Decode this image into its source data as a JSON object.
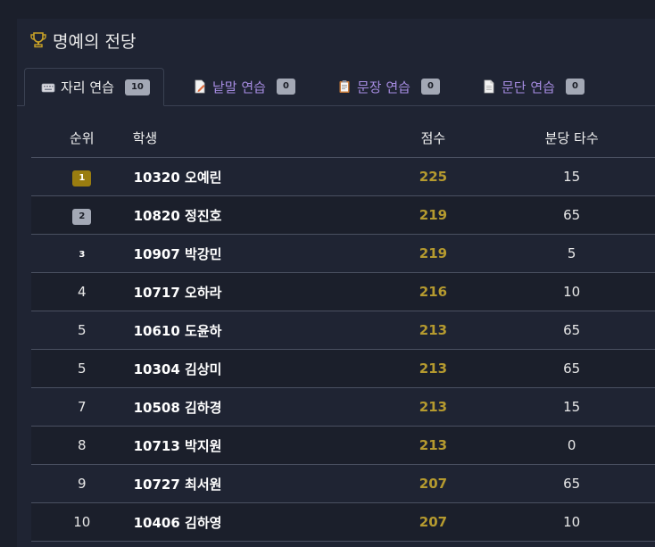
{
  "header": {
    "title": "명예의 전당",
    "icon": "trophy-icon",
    "icon_color": "#c9a227"
  },
  "tabs": [
    {
      "label": "자리 연습",
      "count": "10",
      "icon": "keyboard-icon",
      "active": true
    },
    {
      "label": "낱말 연습",
      "count": "0",
      "icon": "document-pencil-icon",
      "active": false
    },
    {
      "label": "문장 연습",
      "count": "0",
      "icon": "clipboard-icon",
      "active": false
    },
    {
      "label": "문단 연습",
      "count": "0",
      "icon": "document-icon",
      "active": false
    }
  ],
  "table": {
    "headers": {
      "rank": "순위",
      "student": "학생",
      "score": "점수",
      "wpm": "분당 타수"
    },
    "rows": [
      {
        "rank": "1",
        "student": "10320 오예린",
        "score": "225",
        "wpm": "15"
      },
      {
        "rank": "2",
        "student": "10820 정진호",
        "score": "219",
        "wpm": "65"
      },
      {
        "rank": "3",
        "student": "10907 박강민",
        "score": "219",
        "wpm": "5"
      },
      {
        "rank": "4",
        "student": "10717 오하라",
        "score": "216",
        "wpm": "10"
      },
      {
        "rank": "5",
        "student": "10610 도윤하",
        "score": "213",
        "wpm": "65"
      },
      {
        "rank": "5",
        "student": "10304 김상미",
        "score": "213",
        "wpm": "65"
      },
      {
        "rank": "7",
        "student": "10508 김하경",
        "score": "213",
        "wpm": "15"
      },
      {
        "rank": "8",
        "student": "10713 박지원",
        "score": "213",
        "wpm": "0"
      },
      {
        "rank": "9",
        "student": "10727 최서원",
        "score": "207",
        "wpm": "65"
      },
      {
        "rank": "10",
        "student": "10406 김하영",
        "score": "207",
        "wpm": "10"
      }
    ]
  },
  "colors": {
    "accent_tab": "#a58be0",
    "score": "#b59a2f",
    "gold_badge": "#9a7d10",
    "silver_badge": "#a3a8b5"
  }
}
